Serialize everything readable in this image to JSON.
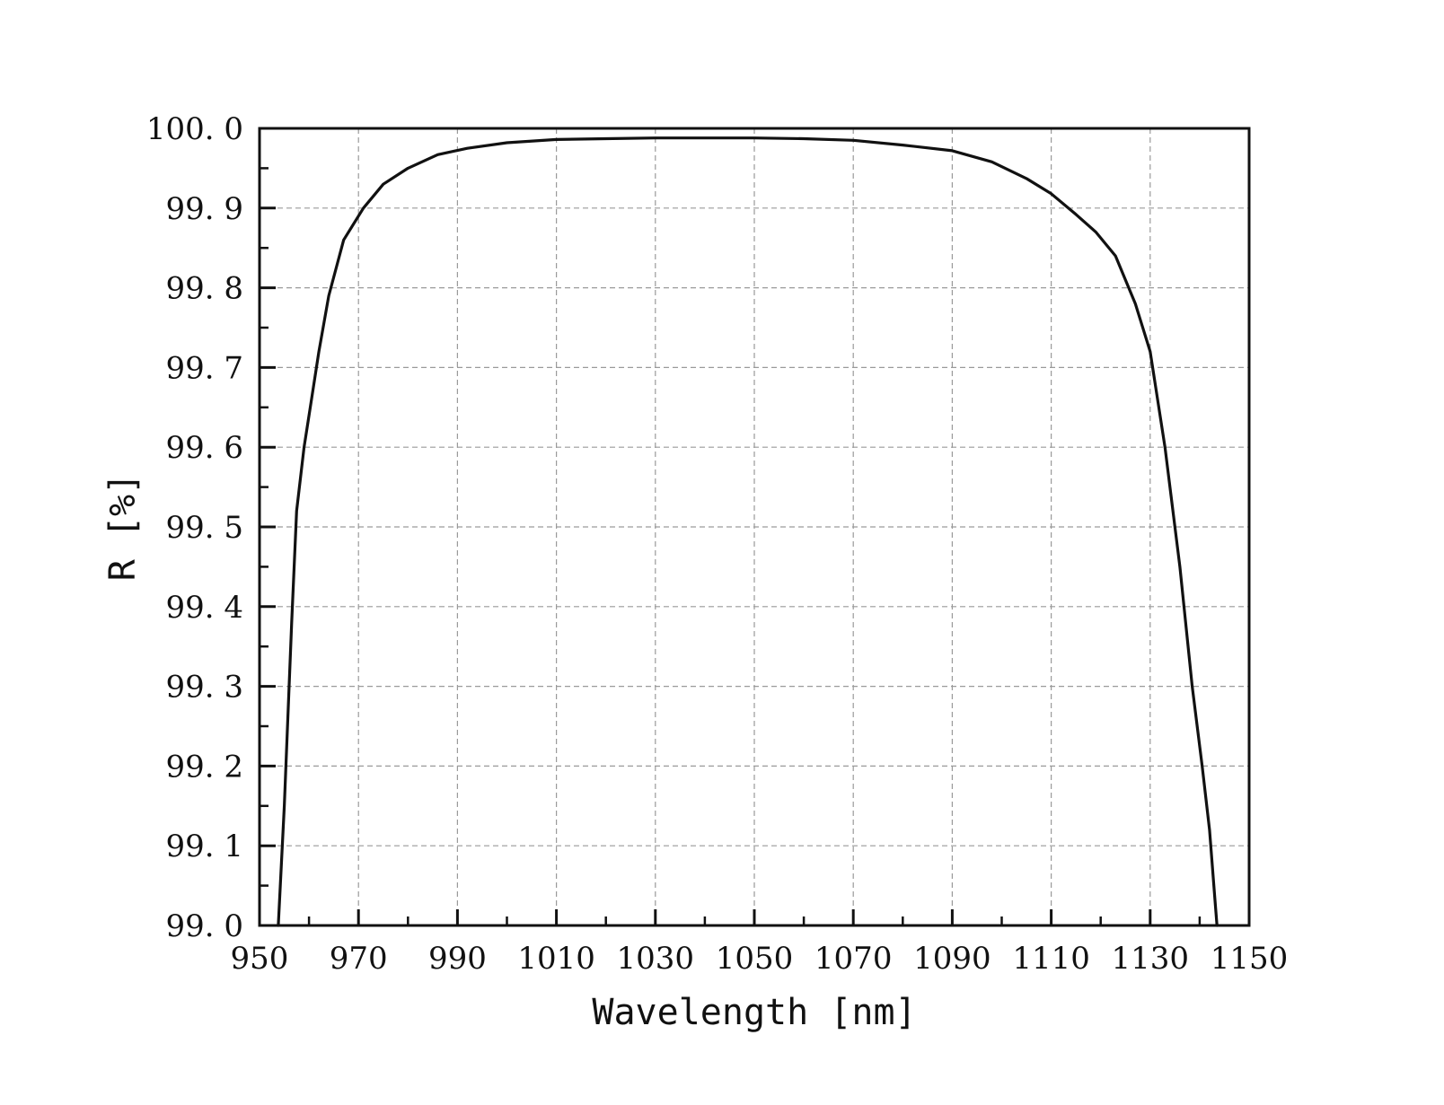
{
  "chart_data": {
    "type": "line",
    "xlabel": "Wavelength [nm]",
    "ylabel": "R [%]",
    "xlim": [
      950,
      1150
    ],
    "ylim": [
      99.0,
      100.0
    ],
    "x_ticks": [
      950,
      970,
      990,
      1010,
      1030,
      1050,
      1070,
      1090,
      1110,
      1130,
      1150
    ],
    "x_tick_labels": [
      "950",
      "970",
      "990",
      "1010",
      "1030",
      "1050",
      "1070",
      "1090",
      "1110",
      "1130",
      "1150"
    ],
    "y_ticks": [
      99.0,
      99.1,
      99.2,
      99.3,
      99.4,
      99.5,
      99.6,
      99.7,
      99.8,
      99.9,
      100.0
    ],
    "y_tick_labels": [
      "99. 0",
      "99. 1",
      "99. 2",
      "99. 3",
      "99. 4",
      "99. 5",
      "99. 6",
      "99. 7",
      "99. 8",
      "99. 9",
      "100. 0"
    ],
    "grid": true,
    "legend": "none",
    "line_color": "#111111",
    "grid_color": "#9a9a9a",
    "series": [
      {
        "x": [
          953.8,
          955,
          956.5,
          957.5,
          959,
          960.5,
          962,
          964,
          967,
          971,
          975,
          980,
          986,
          992,
          1000,
          1010,
          1020,
          1030,
          1040,
          1050,
          1060,
          1070,
          1080,
          1090,
          1098,
          1105,
          1110,
          1115,
          1119,
          1123,
          1127,
          1130,
          1133,
          1136,
          1138.5,
          1140.5,
          1142,
          1143,
          1143.5
        ],
        "y": [
          99.0,
          99.15,
          99.38,
          99.52,
          99.6,
          99.66,
          99.72,
          99.79,
          99.86,
          99.9,
          99.93,
          99.95,
          99.967,
          99.975,
          99.982,
          99.986,
          99.987,
          99.988,
          99.988,
          99.988,
          99.987,
          99.985,
          99.979,
          99.972,
          99.958,
          99.937,
          99.918,
          99.892,
          99.87,
          99.84,
          99.78,
          99.72,
          99.6,
          99.45,
          99.3,
          99.2,
          99.12,
          99.04,
          99.0
        ]
      }
    ]
  }
}
